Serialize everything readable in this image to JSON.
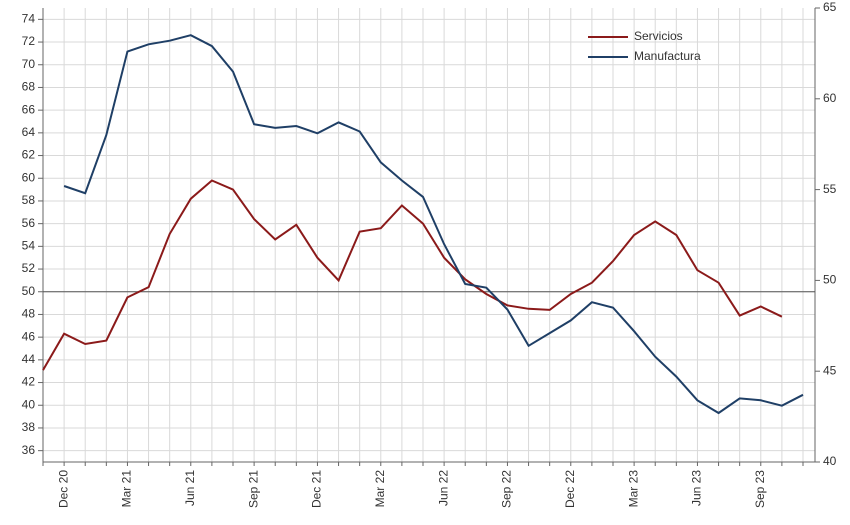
{
  "chart_data": {
    "type": "line",
    "categories": [
      null,
      "Dec 20",
      null,
      null,
      "Mar 21",
      null,
      null,
      "Jun 21",
      null,
      null,
      "Sep 21",
      null,
      null,
      "Dec 21",
      null,
      null,
      "Mar 22",
      null,
      null,
      "Jun 22",
      null,
      null,
      "Sep 22",
      null,
      null,
      "Dec 22",
      null,
      null,
      "Mar 23",
      null,
      null,
      "Jun 23",
      null,
      null,
      "Sep 23",
      null,
      null
    ],
    "series": [
      {
        "name": "Servicios",
        "color": "#8b1a1a",
        "axis": "y",
        "values": [
          43.1,
          46.3,
          45.4,
          45.7,
          49.5,
          50.4,
          55.1,
          58.2,
          59.8,
          59.0,
          56.4,
          54.6,
          55.9,
          53.0,
          51.0,
          55.3,
          55.6,
          57.6,
          56.0,
          53.0,
          51.1,
          49.8,
          48.8,
          48.5,
          48.4,
          49.8,
          50.8,
          52.7,
          55.0,
          56.2,
          55.0,
          51.9,
          50.8,
          47.9,
          48.7,
          47.8,
          null
        ]
      },
      {
        "name": "Manufactura",
        "color": "#1f3f66",
        "axis": "y2",
        "values": [
          null,
          55.2,
          54.8,
          58.0,
          62.6,
          63.0,
          63.2,
          63.5,
          62.9,
          61.5,
          58.6,
          58.4,
          58.5,
          58.1,
          58.7,
          58.2,
          56.5,
          55.5,
          54.6,
          52.0,
          49.8,
          49.6,
          48.4,
          46.4,
          47.1,
          47.8,
          48.8,
          48.5,
          47.2,
          45.8,
          44.7,
          43.4,
          42.7,
          43.5,
          43.4,
          43.1,
          43.7
        ]
      }
    ],
    "ylim": [
      35,
      75
    ],
    "yticks": [
      36,
      38,
      40,
      42,
      44,
      46,
      48,
      50,
      52,
      54,
      56,
      58,
      60,
      62,
      64,
      66,
      68,
      70,
      72,
      74
    ],
    "y2lim": [
      40,
      65
    ],
    "y2ticks": [
      40,
      45,
      50,
      55,
      60,
      65
    ],
    "reference_line": 50,
    "grid": true,
    "legend": "upper right"
  }
}
